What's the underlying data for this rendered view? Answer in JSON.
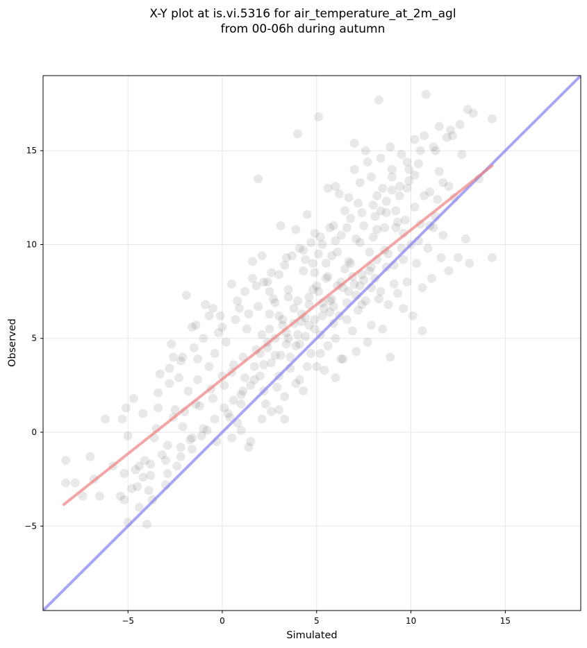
{
  "chart_data": {
    "type": "scatter",
    "title_line1": "X-Y plot at is.vi.5316 for air_temperature_at_2m_agl",
    "title_line2": "from 00-06h during autumn",
    "xlabel": "Simulated",
    "ylabel": "Observed",
    "xlim": [
      -9.5,
      19.0
    ],
    "ylim": [
      -9.5,
      19.0
    ],
    "xticks": [
      -5,
      0,
      5,
      10,
      15
    ],
    "yticks": [
      -5,
      0,
      5,
      10,
      15
    ],
    "xtick_labels": [
      "−5",
      "0",
      "5",
      "10",
      "15"
    ],
    "ytick_labels": [
      "−5",
      "0",
      "5",
      "10",
      "15"
    ],
    "grid": true,
    "colors": {
      "points": "#000000",
      "regression_line": "#f08080",
      "identity_line": "#8080f0",
      "grid": "#e6e6e6"
    },
    "regression_line": {
      "x": [
        -8.4,
        14.3
      ],
      "y": [
        -3.85,
        14.2
      ]
    },
    "identity_line": {
      "x": [
        -9.5,
        19.0
      ],
      "y": [
        -9.5,
        19.0
      ]
    },
    "points": [
      [
        -8.3,
        -1.5
      ],
      [
        -8.3,
        -2.7
      ],
      [
        -7.8,
        -2.7
      ],
      [
        -7.0,
        -1.3
      ],
      [
        -7.4,
        -3.4
      ],
      [
        -6.2,
        0.7
      ],
      [
        -6.5,
        -3.4
      ],
      [
        -5.3,
        0.7
      ],
      [
        -5.1,
        1.3
      ],
      [
        -5.2,
        -2.2
      ],
      [
        -5.4,
        -3.4
      ],
      [
        -5.0,
        -4.8
      ],
      [
        -4.8,
        -3.0
      ],
      [
        -4.7,
        1.8
      ],
      [
        -4.4,
        -1.8
      ],
      [
        -4.2,
        -2.4
      ],
      [
        -4.0,
        -4.9
      ],
      [
        -3.9,
        -3.1
      ],
      [
        -3.8,
        -1.7
      ],
      [
        -3.5,
        0.2
      ],
      [
        -3.4,
        1.3
      ],
      [
        -3.3,
        3.1
      ],
      [
        -3.0,
        -2.8
      ],
      [
        -2.8,
        2.6
      ],
      [
        -2.9,
        -0.7
      ],
      [
        -2.7,
        4.7
      ],
      [
        -2.5,
        1.2
      ],
      [
        -2.4,
        -1.8
      ],
      [
        -2.2,
        3.8
      ],
      [
        -2.1,
        0.3
      ],
      [
        -1.9,
        7.3
      ],
      [
        -1.8,
        2.2
      ],
      [
        -1.7,
        -0.4
      ],
      [
        -1.5,
        4.5
      ],
      [
        -1.4,
        1.5
      ],
      [
        -1.3,
        2.8
      ],
      [
        -1.0,
        5.0
      ],
      [
        -1.1,
        -0.2
      ],
      [
        -0.9,
        6.8
      ],
      [
        -0.7,
        3.5
      ],
      [
        -0.5,
        1.8
      ],
      [
        -0.4,
        4.2
      ],
      [
        -0.3,
        -0.5
      ],
      [
        -0.1,
        6.2
      ],
      [
        0.1,
        2.5
      ],
      [
        0.2,
        4.8
      ],
      [
        0.3,
        1.0
      ],
      [
        0.5,
        3.2
      ],
      [
        0.7,
        6.0
      ],
      [
        0.8,
        0.5
      ],
      [
        1.0,
        2.0
      ],
      [
        1.1,
        4.0
      ],
      [
        1.2,
        7.5
      ],
      [
        1.3,
        5.5
      ],
      [
        1.4,
        -0.8
      ],
      [
        1.5,
        2.5
      ],
      [
        1.6,
        9.1
      ],
      [
        1.8,
        4.4
      ],
      [
        1.9,
        6.7
      ],
      [
        1.9,
        13.5
      ],
      [
        2.0,
        3.0
      ],
      [
        2.1,
        5.2
      ],
      [
        2.2,
        8.0
      ],
      [
        2.3,
        1.5
      ],
      [
        2.4,
        4.5
      ],
      [
        2.5,
        6.3
      ],
      [
        2.6,
        3.7
      ],
      [
        2.7,
        7.1
      ],
      [
        2.8,
        5.0
      ],
      [
        2.9,
        2.4
      ],
      [
        3.0,
        8.4
      ],
      [
        3.1,
        4.1
      ],
      [
        3.2,
        6.0
      ],
      [
        3.3,
        0.7
      ],
      [
        3.4,
        5.3
      ],
      [
        3.5,
        7.6
      ],
      [
        3.6,
        3.4
      ],
      [
        3.7,
        9.4
      ],
      [
        3.8,
        5.8
      ],
      [
        3.9,
        4.6
      ],
      [
        4.0,
        15.9
      ],
      [
        4.0,
        7.0
      ],
      [
        4.1,
        2.8
      ],
      [
        4.2,
        6.3
      ],
      [
        4.3,
        8.6
      ],
      [
        4.4,
        5.1
      ],
      [
        4.5,
        11.6
      ],
      [
        4.6,
        6.8
      ],
      [
        4.7,
        4.2
      ],
      [
        4.8,
        9.0
      ],
      [
        4.9,
        6.0
      ],
      [
        5.0,
        3.5
      ],
      [
        5.1,
        16.8
      ],
      [
        5.1,
        7.5
      ],
      [
        5.2,
        5.2
      ],
      [
        5.3,
        10.0
      ],
      [
        5.4,
        6.6
      ],
      [
        5.5,
        8.2
      ],
      [
        5.6,
        4.6
      ],
      [
        5.7,
        7.0
      ],
      [
        5.8,
        9.4
      ],
      [
        5.9,
        5.8
      ],
      [
        6.0,
        13.1
      ],
      [
        6.1,
        7.8
      ],
      [
        6.2,
        6.2
      ],
      [
        6.3,
        10.5
      ],
      [
        6.4,
        3.9
      ],
      [
        6.5,
        8.7
      ],
      [
        6.6,
        6.9
      ],
      [
        6.7,
        12.5
      ],
      [
        6.8,
        9.0
      ],
      [
        6.9,
        5.4
      ],
      [
        7.0,
        15.4
      ],
      [
        7.0,
        7.9
      ],
      [
        7.1,
        10.3
      ],
      [
        7.2,
        6.5
      ],
      [
        7.3,
        13.3
      ],
      [
        7.4,
        8.4
      ],
      [
        7.5,
        11.0
      ],
      [
        7.6,
        7.0
      ],
      [
        7.7,
        14.4
      ],
      [
        7.8,
        9.6
      ],
      [
        7.9,
        5.7
      ],
      [
        8.0,
        12.1
      ],
      [
        8.1,
        8.2
      ],
      [
        8.2,
        10.8
      ],
      [
        8.3,
        17.7
      ],
      [
        8.4,
        7.5
      ],
      [
        8.5,
        13.0
      ],
      [
        8.6,
        9.7
      ],
      [
        8.7,
        11.7
      ],
      [
        8.8,
        6.8
      ],
      [
        8.9,
        4.0
      ],
      [
        9.0,
        13.6
      ],
      [
        9.1,
        8.9
      ],
      [
        9.2,
        10.9
      ],
      [
        9.3,
        7.4
      ],
      [
        9.4,
        12.6
      ],
      [
        9.5,
        14.8
      ],
      [
        9.6,
        9.2
      ],
      [
        9.7,
        11.3
      ],
      [
        9.8,
        8.0
      ],
      [
        9.9,
        13.4
      ],
      [
        10.0,
        10.0
      ],
      [
        10.1,
        6.2
      ],
      [
        10.2,
        12.0
      ],
      [
        10.3,
        9.0
      ],
      [
        10.4,
        14.3
      ],
      [
        10.5,
        11.1
      ],
      [
        10.6,
        5.4
      ],
      [
        10.7,
        15.8
      ],
      [
        10.8,
        18.0
      ],
      [
        10.9,
        9.8
      ],
      [
        11.0,
        12.8
      ],
      [
        11.1,
        8.2
      ],
      [
        11.2,
        15.2
      ],
      [
        11.3,
        11.5
      ],
      [
        11.5,
        13.9
      ],
      [
        11.7,
        10.5
      ],
      [
        11.9,
        15.7
      ],
      [
        12.1,
        16.1
      ],
      [
        12.3,
        12.5
      ],
      [
        12.5,
        9.3
      ],
      [
        12.7,
        14.8
      ],
      [
        12.9,
        10.3
      ],
      [
        13.0,
        17.2
      ],
      [
        13.1,
        9.0
      ],
      [
        13.3,
        17.0
      ],
      [
        13.6,
        13.5
      ],
      [
        14.3,
        16.7
      ],
      [
        14.3,
        9.3
      ],
      [
        2.0,
        4.2
      ],
      [
        2.5,
        5.5
      ],
      [
        3.0,
        6.2
      ],
      [
        3.5,
        5.0
      ],
      [
        4.2,
        5.9
      ],
      [
        4.6,
        7.2
      ],
      [
        5.3,
        6.9
      ],
      [
        5.8,
        7.1
      ],
      [
        6.4,
        7.7
      ],
      [
        6.9,
        8.3
      ],
      [
        7.5,
        8.1
      ],
      [
        7.8,
        8.6
      ],
      [
        8.2,
        9.2
      ],
      [
        3.2,
        5.7
      ],
      [
        3.8,
        6.6
      ],
      [
        4.4,
        6.1
      ],
      [
        5.0,
        7.8
      ],
      [
        5.6,
        8.3
      ],
      [
        6.1,
        9.6
      ],
      [
        6.7,
        9.1
      ],
      [
        7.3,
        10.1
      ],
      [
        8.0,
        10.4
      ],
      [
        8.6,
        10.9
      ],
      [
        9.2,
        11.8
      ],
      [
        2.4,
        4.8
      ],
      [
        1.7,
        3.5
      ],
      [
        1.2,
        2.9
      ],
      [
        0.6,
        3.6
      ],
      [
        0.0,
        3.0
      ],
      [
        -0.6,
        2.3
      ],
      [
        -1.2,
        1.4
      ],
      [
        -2.0,
        1.1
      ],
      [
        -3.6,
        -0.3
      ],
      [
        -4.6,
        -2.0
      ],
      [
        -4.1,
        -1.5
      ],
      [
        -3.2,
        -1.2
      ],
      [
        -2.6,
        0.8
      ],
      [
        1.4,
        6.3
      ],
      [
        2.8,
        6.9
      ],
      [
        4.8,
        7.6
      ],
      [
        5.5,
        9.0
      ],
      [
        6.3,
        8.0
      ],
      [
        7.1,
        7.3
      ],
      [
        7.9,
        8.8
      ],
      [
        8.8,
        9.5
      ],
      [
        9.6,
        10.6
      ],
      [
        10.4,
        10.2
      ],
      [
        11.0,
        11.0
      ],
      [
        3.6,
        4.0
      ],
      [
        4.1,
        4.7
      ],
      [
        4.9,
        5.5
      ],
      [
        5.7,
        6.4
      ],
      [
        6.6,
        6.0
      ],
      [
        7.4,
        6.8
      ],
      [
        8.3,
        7.1
      ],
      [
        9.1,
        7.9
      ],
      [
        2.2,
        2.2
      ],
      [
        3.0,
        3.0
      ],
      [
        1.0,
        1.5
      ],
      [
        0.4,
        0.8
      ],
      [
        6.0,
        5.0
      ],
      [
        5.2,
        4.2
      ],
      [
        4.5,
        3.5
      ],
      [
        3.9,
        2.6
      ],
      [
        3.3,
        1.9
      ],
      [
        2.6,
        1.1
      ],
      [
        8.7,
        12.3
      ],
      [
        9.4,
        13.1
      ],
      [
        10.2,
        13.7
      ],
      [
        11.4,
        12.4
      ],
      [
        12.0,
        13.1
      ],
      [
        6.8,
        11.4
      ],
      [
        5.9,
        11.0
      ],
      [
        5.2,
        10.4
      ],
      [
        4.3,
        9.7
      ],
      [
        3.4,
        9.3
      ],
      [
        2.6,
        8.5
      ],
      [
        1.8,
        7.8
      ],
      [
        0.9,
        6.6
      ],
      [
        -0.2,
        5.3
      ],
      [
        -1.3,
        3.9
      ],
      [
        -2.3,
        2.9
      ],
      [
        -3.4,
        2.1
      ],
      [
        -4.2,
        1.0
      ],
      [
        -5.0,
        -0.2
      ],
      [
        -5.8,
        -1.8
      ],
      [
        -6.8,
        -2.5
      ],
      [
        -4.4,
        -4.0
      ],
      [
        -3.7,
        -3.6
      ],
      [
        -2.9,
        -2.2
      ],
      [
        -2.2,
        -1.3
      ],
      [
        -1.6,
        -0.9
      ],
      [
        -0.8,
        0.1
      ],
      [
        3.9,
        10.8
      ],
      [
        4.7,
        10.1
      ],
      [
        6.5,
        11.8
      ],
      [
        7.2,
        12.2
      ],
      [
        8.1,
        11.5
      ],
      [
        9.0,
        12.9
      ],
      [
        9.8,
        13.0
      ],
      [
        11.7,
        13.3
      ],
      [
        12.2,
        15.8
      ],
      [
        7.6,
        15.0
      ],
      [
        8.9,
        15.2
      ],
      [
        10.2,
        15.6
      ],
      [
        11.5,
        16.3
      ],
      [
        9.9,
        14.0
      ],
      [
        3.1,
        11.0
      ],
      [
        2.1,
        9.4
      ],
      [
        6.2,
        12.7
      ],
      [
        5.6,
        13.0
      ],
      [
        4.4,
        9.2
      ],
      [
        7.0,
        14.0
      ],
      [
        7.9,
        13.6
      ],
      [
        8.4,
        14.6
      ],
      [
        0.5,
        7.9
      ],
      [
        -0.5,
        6.6
      ],
      [
        -1.6,
        5.6
      ],
      [
        -2.6,
        4.0
      ],
      [
        10.6,
        7.7
      ],
      [
        11.6,
        9.3
      ],
      [
        12.0,
        8.6
      ],
      [
        9.6,
        6.6
      ],
      [
        8.5,
        5.5
      ],
      [
        7.7,
        4.8
      ],
      [
        7.1,
        4.3
      ],
      [
        6.3,
        3.9
      ],
      [
        5.4,
        3.3
      ],
      [
        6.0,
        2.9
      ],
      [
        4.3,
        2.2
      ],
      [
        3.0,
        1.2
      ],
      [
        2.1,
        0.7
      ],
      [
        1.5,
        -0.5
      ],
      [
        1.0,
        0.1
      ],
      [
        0.5,
        -0.3
      ],
      [
        4.9,
        8.5
      ],
      [
        6.0,
        10.2
      ],
      [
        3.5,
        7.2
      ],
      [
        2.5,
        7.5
      ],
      [
        5.1,
        9.5
      ],
      [
        8.4,
        11.8
      ],
      [
        9.3,
        11.2
      ],
      [
        10.7,
        12.6
      ],
      [
        11.2,
        10.9
      ],
      [
        9.5,
        9.8
      ],
      [
        8.7,
        8.8
      ],
      [
        7.9,
        7.7
      ],
      [
        7.3,
        7.8
      ],
      [
        6.7,
        7.5
      ],
      [
        5.9,
        6.7
      ],
      [
        5.3,
        6.2
      ],
      [
        4.6,
        5.7
      ],
      [
        4.0,
        5.2
      ],
      [
        3.4,
        4.7
      ],
      [
        2.8,
        4.1
      ],
      [
        2.2,
        3.6
      ],
      [
        1.7,
        2.8
      ],
      [
        1.1,
        2.2
      ],
      [
        0.6,
        1.7
      ],
      [
        0.1,
        1.3
      ],
      [
        -0.4,
        0.7
      ],
      [
        -1.0,
        0.2
      ],
      [
        -1.6,
        -0.3
      ],
      [
        -2.2,
        -0.8
      ],
      [
        -3.0,
        -1.5
      ],
      [
        -3.8,
        -2.3
      ],
      [
        -4.5,
        -2.9
      ],
      [
        -5.2,
        -3.6
      ],
      [
        -2.8,
        3.4
      ],
      [
        -2.1,
        4.0
      ],
      [
        -1.4,
        5.7
      ],
      [
        -0.7,
        6.2
      ],
      [
        0.0,
        5.6
      ],
      [
        0.8,
        7.0
      ],
      [
        1.6,
        8.2
      ],
      [
        2.4,
        8.0
      ],
      [
        3.3,
        8.9
      ],
      [
        4.1,
        9.8
      ],
      [
        4.9,
        10.6
      ],
      [
        5.7,
        10.9
      ],
      [
        6.6,
        10.9
      ],
      [
        7.4,
        11.7
      ],
      [
        8.2,
        12.6
      ],
      [
        9.0,
        14.0
      ],
      [
        9.8,
        14.4
      ],
      [
        10.5,
        15.0
      ],
      [
        11.3,
        15.0
      ],
      [
        12.6,
        16.4
      ]
    ]
  }
}
